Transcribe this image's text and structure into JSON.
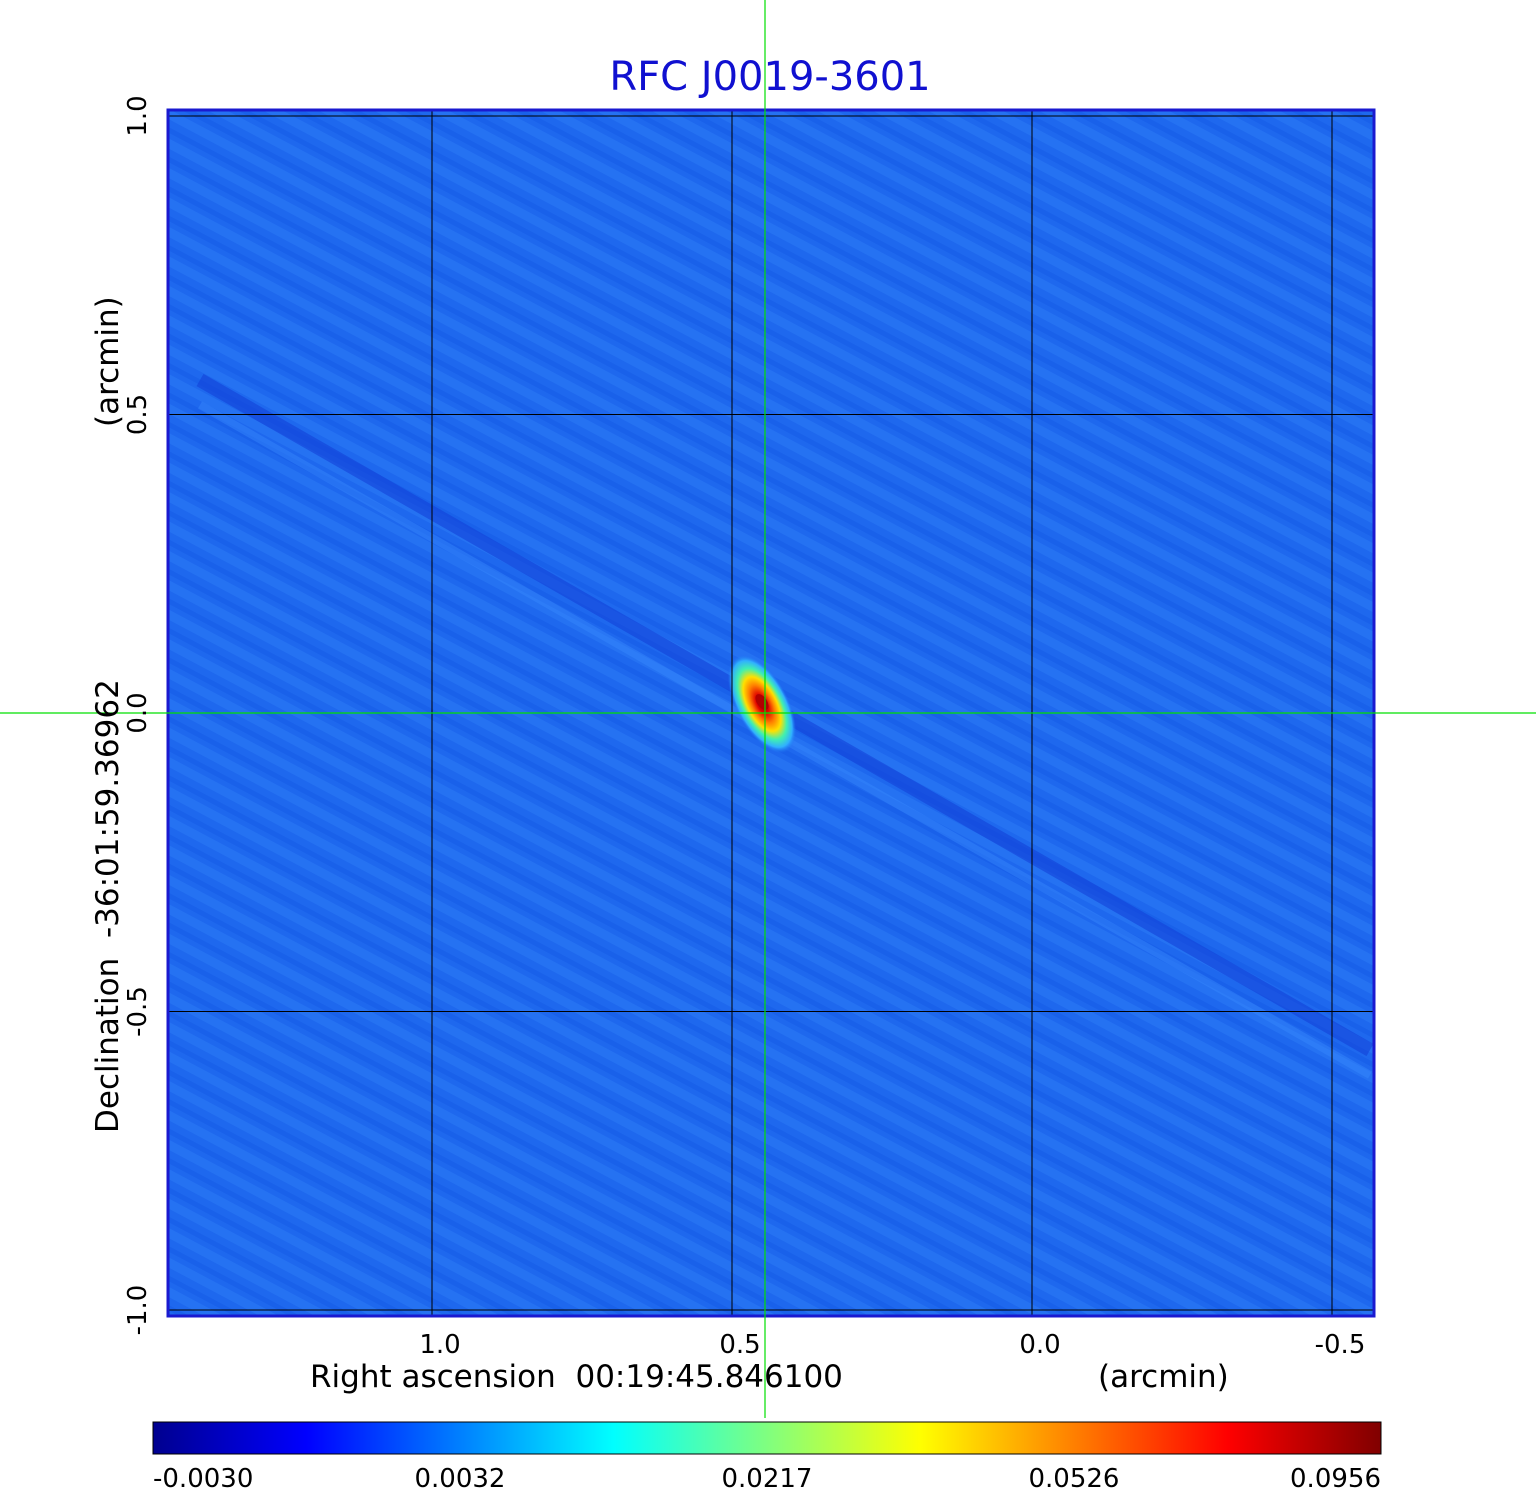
{
  "chart_data": {
    "type": "heatmap",
    "title": "RFC J0019-3601",
    "xlabel": "Right ascension  00:19:45.846100",
    "xunit": "(arcmin)",
    "ylabel": "Declination  -36:01:59.36962",
    "yunit": "(arcmin)",
    "xlim": [
      1.44,
      -0.57
    ],
    "ylim": [
      -1.01,
      1.01
    ],
    "x_ticks": [
      1.0,
      0.5,
      0.0,
      -0.5
    ],
    "x_tick_labels": [
      "1.0",
      "0.5",
      "0.0",
      "-0.5"
    ],
    "y_ticks": [
      -1.0,
      -0.5,
      0.0,
      0.5,
      1.0
    ],
    "y_tick_labels": [
      "-1.0",
      "-0.5",
      "0.0",
      "0.5",
      "1.0"
    ],
    "grid": true,
    "crosshair": {
      "x": 0.445,
      "y": 0.0
    },
    "source_peak": {
      "x": 0.445,
      "y": 0.0,
      "value": 0.0956
    },
    "colorbar": {
      "colormap": "jet",
      "ticks": [
        -0.003,
        0.0032,
        0.0217,
        0.0526,
        0.0956
      ],
      "tick_labels": [
        "-0.0030",
        "0.0032",
        "0.0217",
        "0.0526",
        "0.0956"
      ]
    },
    "colors": {
      "title": "#1010d0",
      "frame": "#1a1ad0",
      "crosshair": "#00e000",
      "grid": "#000000"
    }
  }
}
